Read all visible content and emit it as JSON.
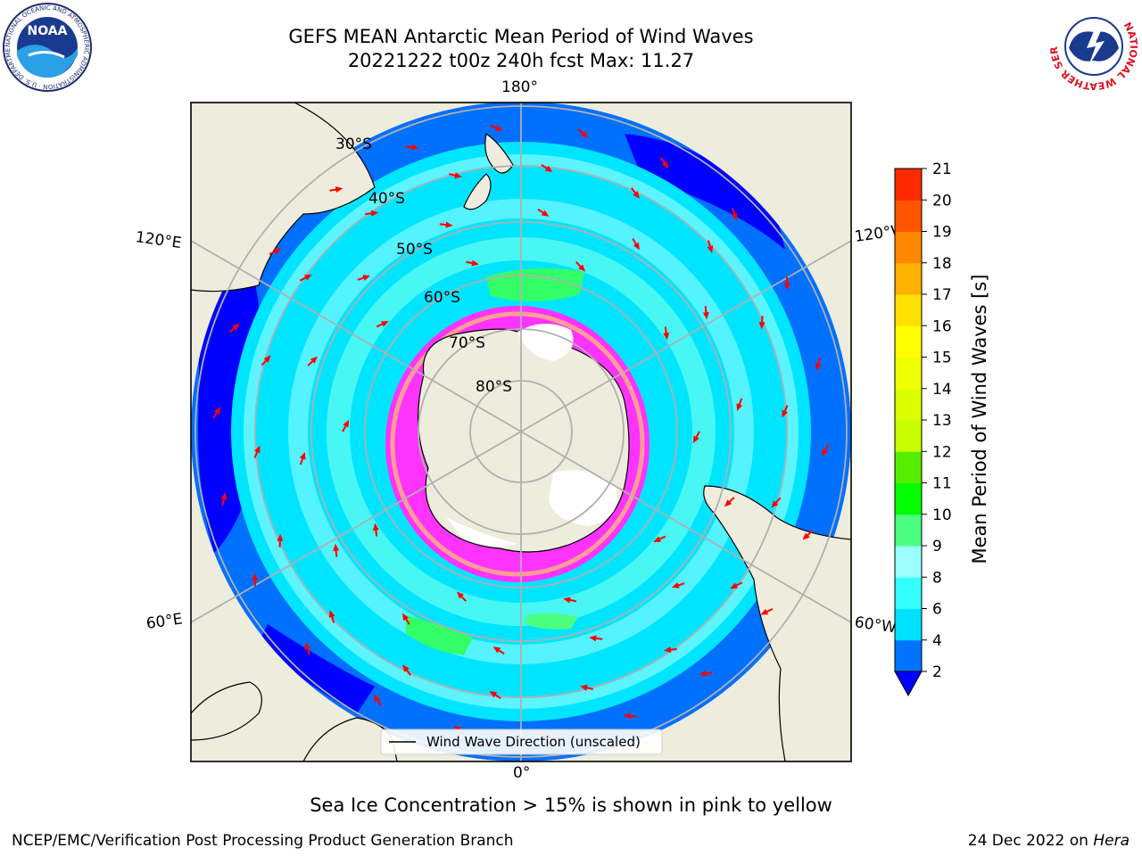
{
  "header": {
    "title_line1": "GEFS MEAN Antarctic Mean Period of Wind Waves",
    "title_line2": "20221222 t00z 240h fcst   Max: 11.27"
  },
  "logos": {
    "noaa_text": "NOAA",
    "noaa_ring_text": "NATIONAL OCEANIC AND ATMOSPHERIC ADMINISTRATION · U.S. DEPARTMENT OF COMMERCE",
    "nws_ring_text": "NATIONAL WEATHER SERVICE"
  },
  "map": {
    "longitude_labels": {
      "top": "180°",
      "bottom": "0°",
      "upper_left": "120°E",
      "upper_right": "120°W",
      "lower_left": "60°E",
      "lower_right": "60°W"
    },
    "latitude_labels": [
      "30°S",
      "40°S",
      "50°S",
      "60°S",
      "70°S",
      "80°S"
    ],
    "legend_label": "Wind Wave Direction (unscaled)",
    "colors": {
      "land": "#eeecdc",
      "ocean_deep": "#0000ff",
      "ocean_blue": "#0070ff",
      "ocean_cyan": "#00e5ff",
      "ocean_light": "#99ffff",
      "ocean_green": "#33ff66",
      "sea_ice": "#ff33ff",
      "arrow": "#ff0000",
      "grid": "#b0b0b0"
    }
  },
  "colorbar": {
    "label": "Mean Period of Wind Waves [s]",
    "ticks": [
      "2",
      "4",
      "6",
      "8",
      "9",
      "10",
      "11",
      "12",
      "13",
      "14",
      "15",
      "16",
      "17",
      "18",
      "19",
      "20",
      "21"
    ],
    "colors": [
      "#0073ff",
      "#00e0ff",
      "#33ffff",
      "#99ffff",
      "#4dff80",
      "#00ff00",
      "#55ee00",
      "#c8ff00",
      "#dcff00",
      "#f0ff00",
      "#ffff00",
      "#ffe000",
      "#ffb000",
      "#ff8800",
      "#ff5500",
      "#ff2a00",
      "#ff0000"
    ],
    "under_color": "#0000ff"
  },
  "footer": {
    "note": "Sea Ice Concentration > 15% is shown in pink to yellow",
    "credit": "NCEP/EMC/Verification Post Processing Product Generation Branch",
    "date": "24 Dec 2022 on ",
    "machine": "Hera"
  }
}
